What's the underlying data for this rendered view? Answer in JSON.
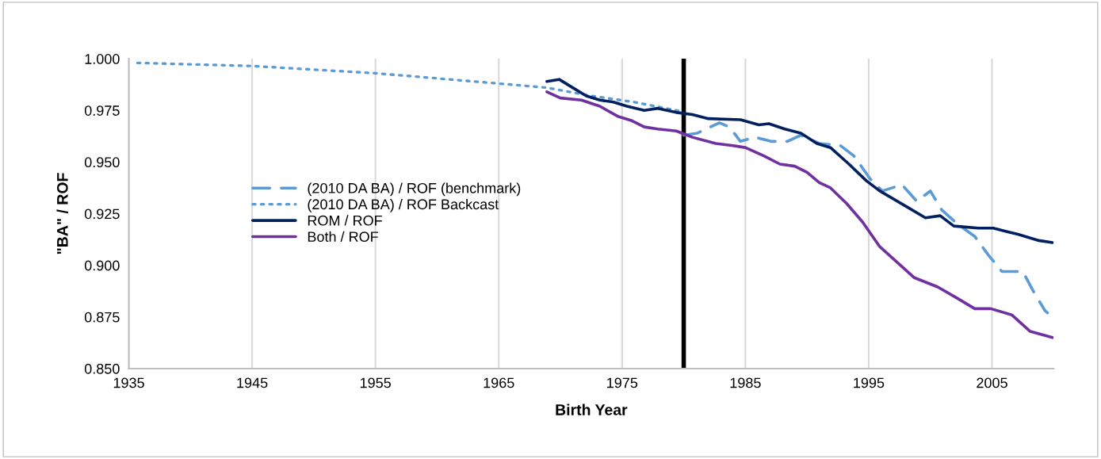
{
  "chart_data": {
    "type": "line",
    "xlabel": "Birth Year",
    "ylabel": "\"BA\" / ROF",
    "xlim": [
      1935,
      2010
    ],
    "xticks": [
      1935,
      1945,
      1955,
      1965,
      1975,
      1985,
      1995,
      2005
    ],
    "ylim": [
      0.85,
      1.0
    ],
    "yticks": [
      {
        "value": 0.85,
        "label": "0.850"
      },
      {
        "value": 0.875,
        "label": "0.875"
      },
      {
        "value": 0.9,
        "label": "0.900"
      },
      {
        "value": 0.925,
        "label": "0.925"
      },
      {
        "value": 0.95,
        "label": "0.950"
      },
      {
        "value": 0.975,
        "label": "0.975"
      },
      {
        "value": 1.0,
        "label": "1.000"
      }
    ],
    "grid": "x",
    "legend": "center left",
    "ref_lines": [
      {
        "axis": "x",
        "value": 1980,
        "color": "#000000"
      }
    ],
    "series": [
      {
        "name": "(2010 DA BA) / ROF (benchmark)",
        "color": "#5b9bd5",
        "line_style": "dashed",
        "x": [
          1980.0,
          1981.1,
          1982.9,
          1983.7,
          1984.6,
          1985.8,
          1987.1,
          1988.4,
          1989.5,
          1991.0,
          1992.7,
          1993.8,
          1995.1,
          1996.1,
          1997.7,
          1998.9,
          2000.0,
          2000.9,
          2002.2,
          2003.6,
          2004.7,
          2005.8,
          2007.5,
          2008.3,
          2009.3,
          2009.5
        ],
        "values": [
          0.963,
          0.964,
          0.969,
          0.967,
          0.96,
          0.962,
          0.96,
          0.96,
          0.963,
          0.959,
          0.958,
          0.953,
          0.942,
          0.936,
          0.939,
          0.931,
          0.936,
          0.927,
          0.92,
          0.914,
          0.905,
          0.897,
          0.897,
          0.888,
          0.878,
          0.877
        ]
      },
      {
        "name": "(2010 DA BA) / ROF Backcast",
        "color": "#5b9bd5",
        "line_style": "dotted",
        "x": [
          1935.7,
          1945,
          1955,
          1965,
          1968.9,
          1972.5,
          1976,
          1979.4,
          1980
        ],
        "values": [
          0.998,
          0.9965,
          0.993,
          0.988,
          0.986,
          0.982,
          0.979,
          0.975,
          0.974
        ]
      },
      {
        "name": "ROM / ROF",
        "color": "#002060",
        "line_style": "solid",
        "x": [
          1968.9,
          1969.9,
          1971,
          1972.1,
          1973.2,
          1974.3,
          1975.4,
          1976.8,
          1977.9,
          1979.4,
          1980.7,
          1982,
          1984.6,
          1986.1,
          1986.9,
          1988.2,
          1989.5,
          1990.8,
          1991.9,
          1993.4,
          1994.8,
          1995.9,
          1997.9,
          1999.6,
          2000.8,
          2001.9,
          2003.9,
          2005.1,
          2007.1,
          2008.8,
          2009.9
        ],
        "values": [
          0.989,
          0.99,
          0.986,
          0.982,
          0.98,
          0.979,
          0.977,
          0.975,
          0.976,
          0.974,
          0.973,
          0.971,
          0.9705,
          0.968,
          0.9686,
          0.966,
          0.964,
          0.959,
          0.957,
          0.949,
          0.941,
          0.936,
          0.929,
          0.923,
          0.924,
          0.919,
          0.918,
          0.918,
          0.915,
          0.912,
          0.911
        ]
      },
      {
        "name": "Both / ROF",
        "color": "#7030a0",
        "line_style": "solid",
        "x": [
          1968.9,
          1970,
          1971.7,
          1973.2,
          1974.7,
          1975.8,
          1976.8,
          1977.9,
          1979.4,
          1980.7,
          1982.6,
          1983.9,
          1985,
          1986.5,
          1987.8,
          1989,
          1990,
          1991,
          1991.9,
          1993.2,
          1994.5,
          1995.9,
          1997.4,
          1998.7,
          2000.6,
          2002.2,
          2003.6,
          2004.9,
          2006.6,
          2008.1,
          2009.9
        ],
        "values": [
          0.984,
          0.981,
          0.98,
          0.977,
          0.972,
          0.97,
          0.967,
          0.966,
          0.965,
          0.962,
          0.959,
          0.958,
          0.957,
          0.953,
          0.949,
          0.948,
          0.945,
          0.94,
          0.9375,
          0.93,
          0.921,
          0.909,
          0.901,
          0.894,
          0.8895,
          0.884,
          0.879,
          0.879,
          0.876,
          0.868,
          0.865
        ]
      }
    ]
  }
}
